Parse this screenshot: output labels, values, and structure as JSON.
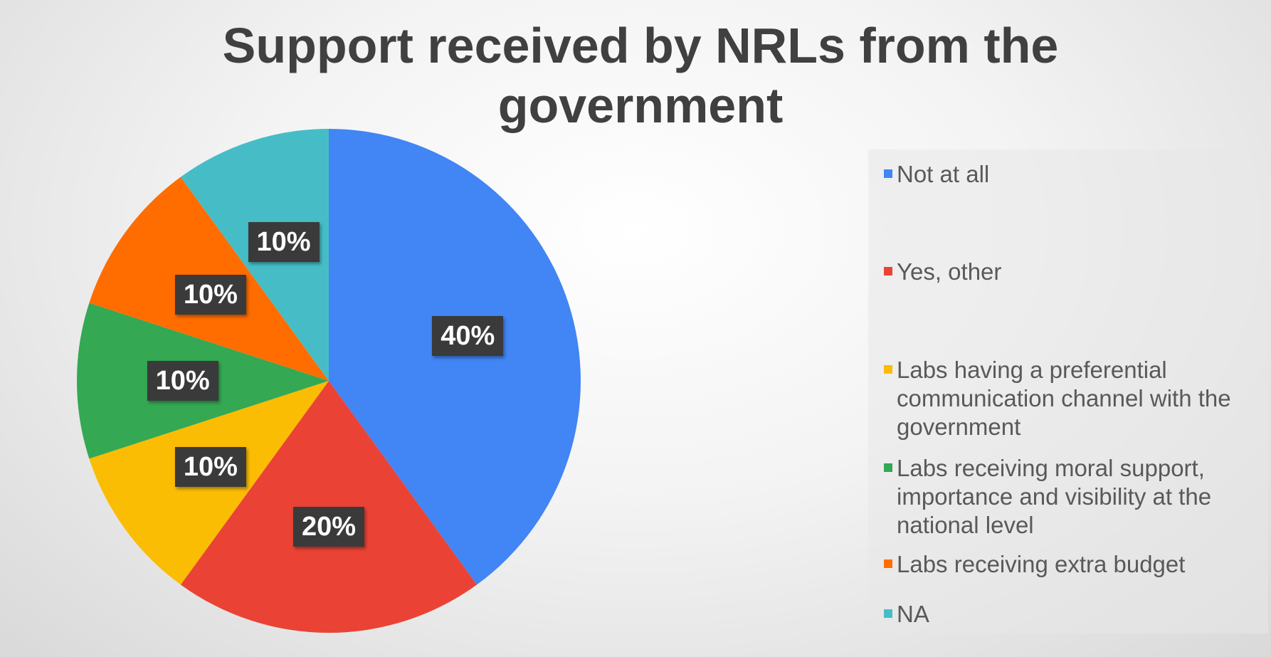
{
  "chart_data": {
    "type": "pie",
    "title": "Support received by NRLs from the\ngovernment",
    "slices": [
      {
        "label": "Not at all",
        "value": 40,
        "display": "40%",
        "color": "#4285f4"
      },
      {
        "label": "Yes, other",
        "value": 20,
        "display": "20%",
        "color": "#ea4335"
      },
      {
        "label": "Labs having a preferential communication channel with the government",
        "value": 10,
        "display": "10%",
        "color": "#fbbc04"
      },
      {
        "label": "Labs receiving moral support, importance and visibility at the national level",
        "value": 10,
        "display": "10%",
        "color": "#34a853"
      },
      {
        "label": "Labs receiving extra budget",
        "value": 10,
        "display": "10%",
        "color": "#ff6d01"
      },
      {
        "label": "NA",
        "value": 10,
        "display": "10%",
        "color": "#46bdc6"
      }
    ],
    "legend_position": "right"
  }
}
